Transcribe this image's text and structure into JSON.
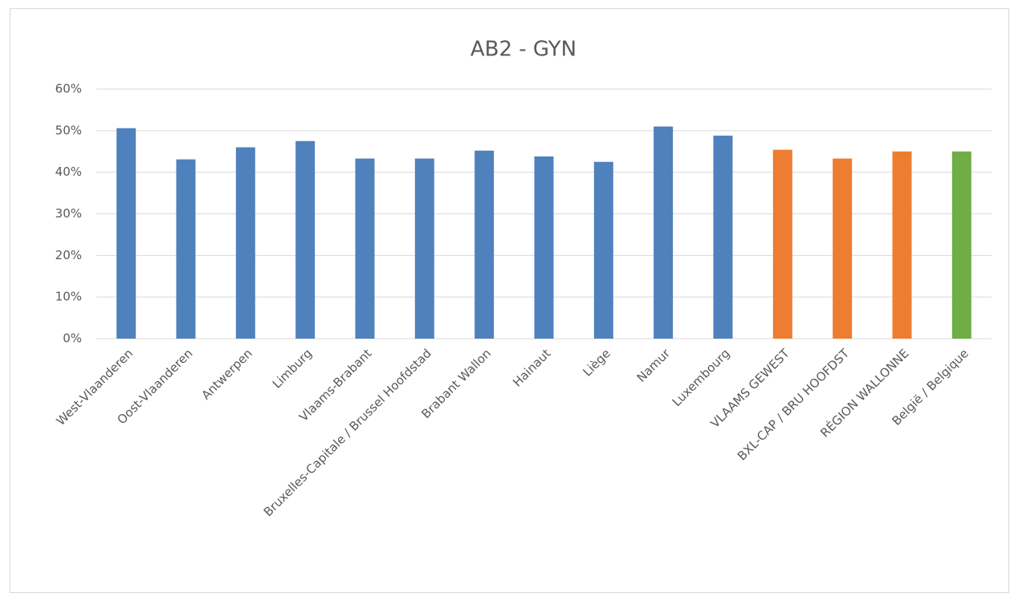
{
  "chart_data": {
    "type": "bar",
    "title": "AB2 - GYN",
    "categories": [
      "West-Vlaanderen",
      "Oost-Vlaanderen",
      "Antwerpen",
      "Limburg",
      "Vlaams-Brabant",
      "Bruxelles-Capitale / Brussel Hoofdstad",
      "Brabant Wallon",
      "Hainaut",
      "Liège",
      "Namur",
      "Luxembourg",
      "VLAAMS GEWEST",
      "BXL-CAP / BRU HOOFDST",
      "RÉGION WALLONNE",
      "België / Belgique"
    ],
    "values": [
      50.6,
      43.1,
      46.0,
      47.5,
      43.3,
      43.3,
      45.2,
      43.8,
      42.5,
      51.0,
      48.8,
      45.4,
      43.3,
      45.0,
      45.0
    ],
    "colors": [
      "#4f81bd",
      "#4f81bd",
      "#4f81bd",
      "#4f81bd",
      "#4f81bd",
      "#4f81bd",
      "#4f81bd",
      "#4f81bd",
      "#4f81bd",
      "#4f81bd",
      "#4f81bd",
      "#ed7d31",
      "#ed7d31",
      "#ed7d31",
      "#70ad47"
    ],
    "ylim": [
      0,
      60
    ],
    "yticks": [
      {
        "value": 0,
        "label": "0%"
      },
      {
        "value": 10,
        "label": "10%"
      },
      {
        "value": 20,
        "label": "20%"
      },
      {
        "value": 30,
        "label": "30%"
      },
      {
        "value": 40,
        "label": "40%"
      },
      {
        "value": 50,
        "label": "50%"
      },
      {
        "value": 60,
        "label": "60%"
      }
    ],
    "grid": true
  }
}
